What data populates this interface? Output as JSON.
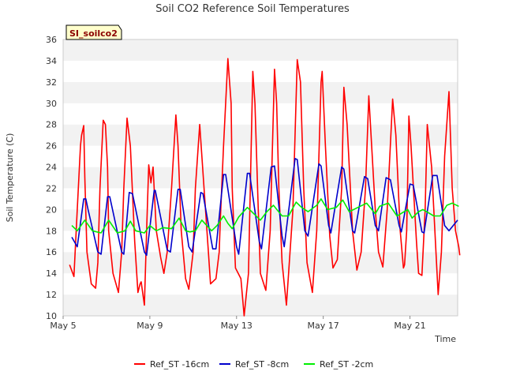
{
  "chart_data": {
    "type": "line",
    "title": "Soil CO2 Reference Soil Temperatures",
    "xlabel": "Time",
    "ylabel": "Soil Temperature (C)",
    "site_badge": "SI_soilco2",
    "xlim": [
      0,
      18.2
    ],
    "x_unit": "days since May 5",
    "x_ticks": [
      {
        "label": "May 5",
        "x": 0
      },
      {
        "label": "May 9",
        "x": 4
      },
      {
        "label": "May 13",
        "x": 8
      },
      {
        "label": "May 17",
        "x": 12
      },
      {
        "label": "May 21",
        "x": 16
      }
    ],
    "ylim": [
      10,
      36
    ],
    "y_ticks": [
      10,
      12,
      14,
      16,
      18,
      20,
      22,
      24,
      26,
      28,
      30,
      32,
      34,
      36
    ],
    "grid": "horizontal alternating bands",
    "legend_position": "bottom",
    "series": [
      {
        "name": "Ref_ST -16cm",
        "color": "#ff0000",
        "x": [
          0.3,
          0.5,
          0.65,
          0.8,
          0.85,
          0.95,
          1.0,
          1.1,
          1.3,
          1.5,
          1.6,
          1.7,
          1.85,
          1.95,
          2.05,
          2.1,
          2.3,
          2.55,
          2.7,
          2.8,
          2.95,
          3.1,
          3.3,
          3.45,
          3.55,
          3.6,
          3.75,
          3.85,
          3.95,
          4.05,
          4.15,
          4.3,
          4.5,
          4.65,
          4.8,
          5.0,
          5.2,
          5.3,
          5.45,
          5.65,
          5.8,
          6.0,
          6.1,
          6.3,
          6.5,
          6.7,
          6.8,
          7.05,
          7.2,
          7.25,
          7.4,
          7.6,
          7.75,
          7.8,
          7.95,
          8.2,
          8.35,
          8.55,
          8.75,
          8.85,
          9.0,
          9.1,
          9.35,
          9.55,
          9.75,
          9.85,
          9.95,
          10.1,
          10.3,
          10.6,
          10.8,
          10.95,
          11.1,
          11.25,
          11.5,
          11.7,
          11.9,
          11.95,
          12.1,
          12.3,
          12.45,
          12.65,
          12.85,
          12.95,
          13.1,
          13.35,
          13.55,
          13.75,
          13.95,
          14.1,
          14.4,
          14.55,
          14.75,
          14.95,
          15.2,
          15.35,
          15.55,
          15.7,
          15.75,
          15.85,
          15.95,
          16.05,
          16.3,
          16.4,
          16.55,
          16.7,
          16.8,
          17.0,
          17.2
        ],
        "values": [
          14.8,
          13.7,
          20.0,
          26.0,
          27.0,
          27.9,
          23.0,
          16.0,
          13.0,
          12.6,
          15.0,
          22.0,
          28.4,
          28.0,
          24.0,
          18.0,
          14.0,
          12.2,
          16.0,
          22.0,
          28.6,
          26.0,
          17.0,
          12.2,
          13.0,
          13.2,
          11.0,
          18.0,
          24.2,
          22.5,
          24.0,
          18.0,
          15.5,
          14.0,
          16.0,
          22.0,
          28.9,
          26.0,
          18.0,
          13.5,
          12.5,
          16.0,
          22.0,
          28.0,
          22.0,
          16.0,
          13.0,
          13.5,
          16.0,
          19.0,
          26.0,
          34.2,
          30.0,
          22.0,
          14.5,
          13.5,
          10.0,
          14.0,
          33.0,
          30.0,
          20.0,
          14.0,
          12.4,
          18.0,
          33.2,
          30.0,
          22.0,
          15.0,
          11.0,
          20.0,
          34.1,
          32.0,
          22.0,
          15.0,
          12.2,
          18.0,
          32.0,
          33.0,
          26.0,
          17.5,
          14.5,
          15.3,
          22.0,
          31.5,
          28.0,
          18.0,
          14.3,
          16.0,
          22.0,
          30.7,
          20.0,
          16.0,
          14.6,
          20.0,
          30.4,
          27.0,
          18.0,
          14.5,
          14.8,
          18.0,
          28.8,
          26.0,
          17.0,
          14.0,
          13.8,
          20.0,
          28.0,
          24.0,
          16.0
        ],
        "values_extra": {
          "x": [
            17.25,
            17.3,
            17.45,
            17.6,
            17.8,
            17.95
          ],
          "values": [
            14.0,
            12.0,
            16.0,
            25.0,
            31.1,
            22.0
          ]
        },
        "tail": {
          "x": [
            18.1,
            18.25,
            18.3
          ],
          "values": [
            18.0,
            16.5,
            15.7
          ]
        }
      },
      {
        "name": "Ref_ST -8cm",
        "color": "#0000cc",
        "x": [
          0.4,
          0.65,
          0.95,
          1.05,
          1.15,
          1.6,
          1.75,
          2.05,
          2.15,
          2.7,
          2.8,
          3.05,
          3.2,
          3.75,
          3.85,
          4.2,
          4.25,
          4.8,
          4.95,
          5.3,
          5.4,
          5.8,
          5.95,
          6.35,
          6.45,
          6.9,
          7.05,
          7.4,
          7.5,
          8.0,
          8.1,
          8.5,
          8.6,
          9.05,
          9.15,
          9.6,
          9.75,
          10.1,
          10.2,
          10.7,
          10.8,
          11.15,
          11.3,
          11.8,
          11.9,
          12.25,
          12.35,
          12.85,
          12.95,
          13.35,
          13.45,
          13.9,
          14.05,
          14.4,
          14.55,
          14.9,
          15.1,
          15.5,
          15.6,
          16.0,
          16.15,
          16.55,
          16.65,
          17.05,
          17.25,
          17.6,
          17.8,
          18.2
        ],
        "values": [
          17.4,
          16.5,
          21.0,
          21.0,
          20.0,
          16.0,
          15.8,
          21.2,
          21.2,
          16.0,
          15.8,
          21.6,
          21.5,
          16.0,
          15.7,
          21.8,
          21.8,
          16.2,
          16.0,
          21.9,
          21.9,
          16.5,
          16.0,
          21.6,
          21.5,
          16.3,
          16.3,
          23.3,
          23.3,
          16.5,
          15.8,
          23.4,
          23.4,
          17.0,
          16.3,
          24.0,
          24.1,
          17.5,
          16.5,
          24.8,
          24.7,
          18.0,
          17.5,
          24.3,
          24.1,
          18.5,
          17.8,
          24.0,
          23.8,
          18.0,
          17.8,
          23.1,
          22.9,
          18.5,
          18.0,
          23.0,
          22.8,
          18.5,
          17.9,
          22.4,
          22.3,
          17.9,
          17.8,
          23.2,
          23.2,
          18.5,
          18.0,
          19.0
        ]
      },
      {
        "name": "Ref_ST -2cm",
        "color": "#00ee00",
        "x": [
          0.4,
          0.65,
          1.0,
          1.35,
          1.55,
          1.75,
          2.1,
          2.5,
          2.85,
          3.1,
          3.35,
          3.75,
          4.0,
          4.3,
          4.6,
          5.0,
          5.35,
          5.65,
          5.85,
          6.1,
          6.4,
          6.85,
          7.1,
          7.4,
          7.6,
          7.8,
          8.1,
          8.5,
          8.8,
          9.1,
          9.4,
          9.7,
          10.1,
          10.4,
          10.75,
          11.0,
          11.3,
          11.7,
          11.9,
          12.2,
          12.6,
          12.9,
          13.2,
          13.6,
          14.0,
          14.4,
          14.6,
          15.0,
          15.4,
          15.9,
          16.1,
          16.4,
          16.6,
          17.1,
          17.4,
          17.7,
          17.95,
          18.25
        ],
        "values": [
          18.5,
          18.0,
          19.0,
          18.0,
          17.9,
          17.8,
          19.0,
          17.8,
          18.0,
          18.9,
          18.0,
          17.8,
          18.5,
          18.0,
          18.3,
          18.2,
          19.2,
          18.0,
          17.9,
          18.0,
          19.0,
          18.0,
          18.5,
          19.4,
          18.7,
          18.2,
          19.3,
          20.2,
          19.6,
          19.0,
          19.8,
          20.4,
          19.4,
          19.4,
          20.7,
          20.2,
          19.8,
          20.4,
          21.0,
          20.0,
          20.2,
          20.9,
          19.8,
          20.2,
          20.6,
          19.6,
          20.3,
          20.6,
          19.4,
          20.0,
          19.2,
          19.8,
          20.0,
          19.4,
          19.4,
          20.4,
          20.6,
          20.3
        ]
      }
    ]
  }
}
